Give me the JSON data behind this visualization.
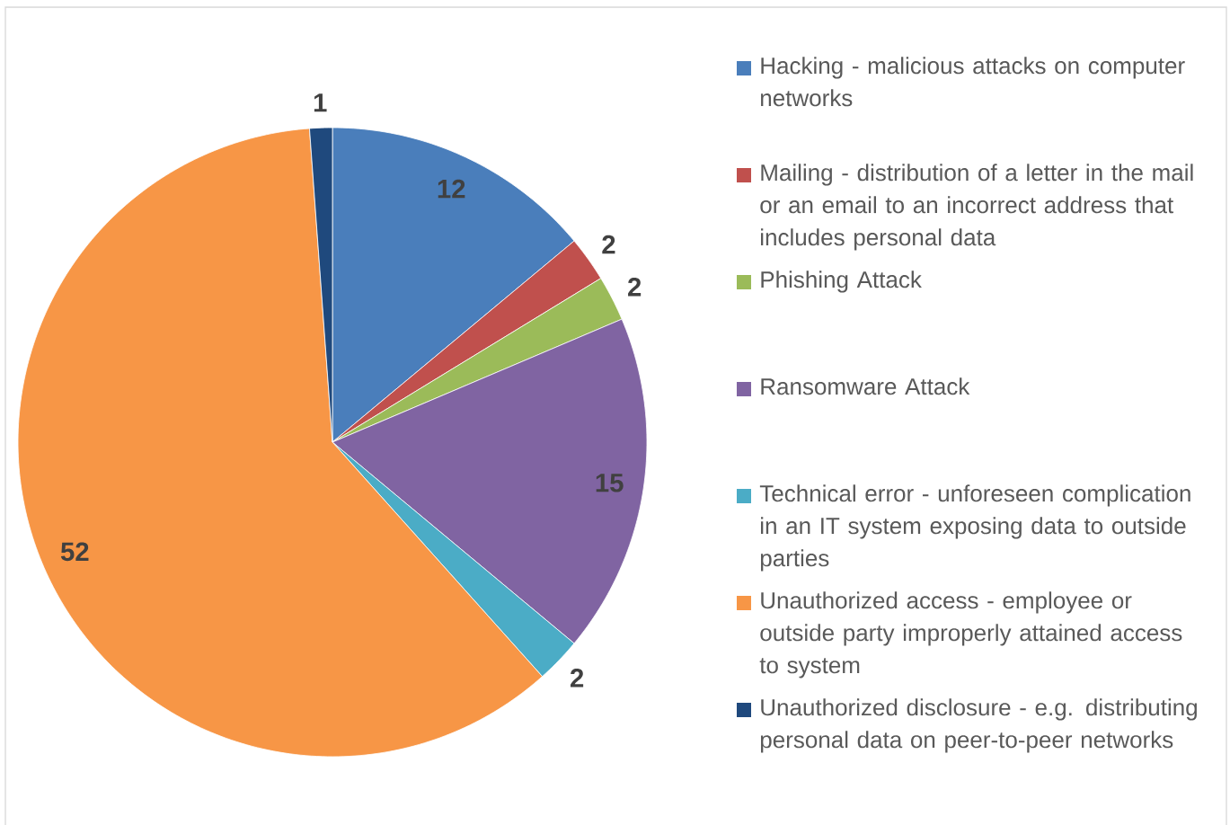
{
  "chart_data": {
    "type": "pie",
    "categories": [
      "Hacking - malicious attacks on computer networks",
      "Mailing - distribution of a letter in the mail or an email to an incorrect address that includes personal data",
      "Phishing Attack",
      "Ransomware Attack",
      "Technical error - unforeseen complication in an IT system exposing data to outside parties",
      "Unauthorized access - employee or outside party improperly attained access to system",
      "Unauthorized disclosure - e.g. distributing personal data on peer-to-peer networks"
    ],
    "values": [
      12,
      2,
      2,
      15,
      2,
      52,
      1
    ],
    "colors": [
      "#4a7ebb",
      "#c0504d",
      "#9bbb59",
      "#8064a2",
      "#4bacc6",
      "#f79646",
      "#1f497d"
    ],
    "data_labels": true,
    "legend": "right"
  }
}
